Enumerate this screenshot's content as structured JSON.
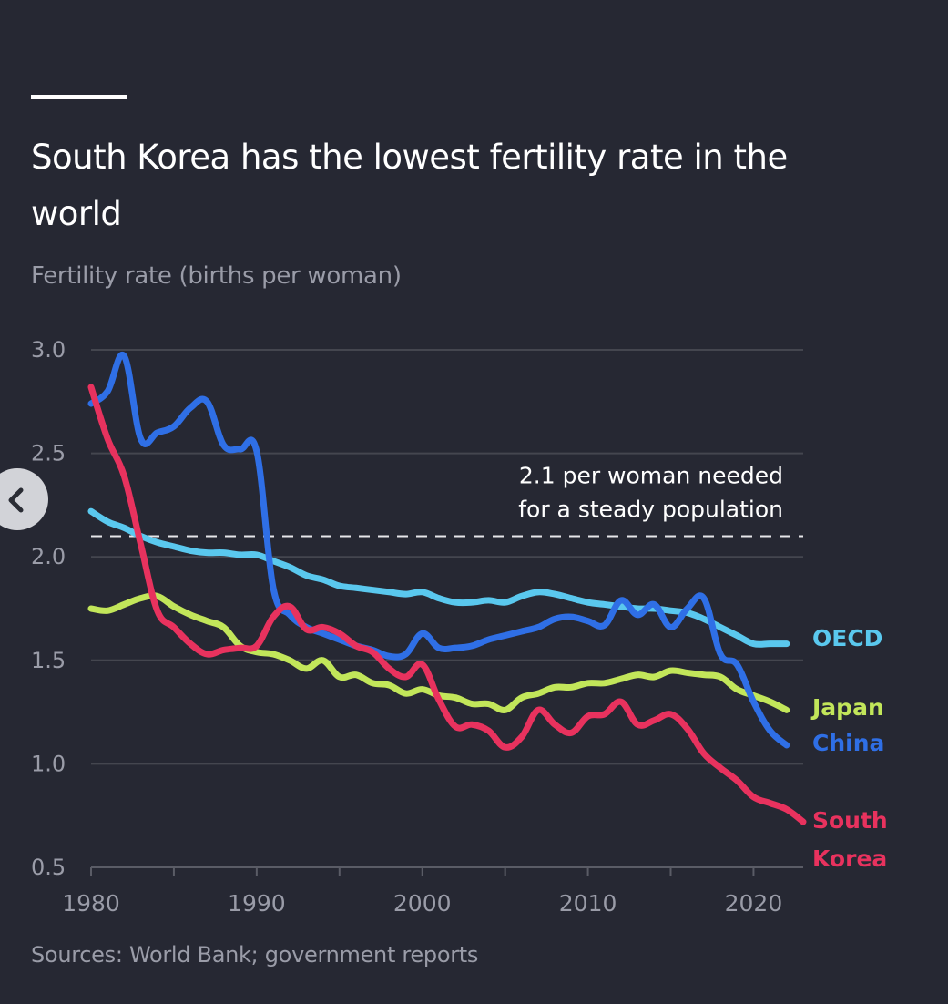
{
  "header": {
    "title": "South Korea has the lowest fertility rate in the world",
    "subtitle": "Fertility rate (births per woman)"
  },
  "footer": {
    "source": "Sources: World Bank; government reports"
  },
  "nav": {
    "back_icon": "chevron-left-icon"
  },
  "colors": {
    "background": "#262833",
    "grid": "#44464f",
    "axis_text": "#9a9ca8",
    "OECD": "#5ac8ee",
    "Japan": "#c2e65a",
    "China": "#2f6fe6",
    "South Korea": "#e8325e"
  },
  "chart_data": {
    "type": "line",
    "title": "South Korea has the lowest fertility rate in the world",
    "subtitle": "Fertility rate (births per woman)",
    "xlabel": "",
    "ylabel": "Fertility rate (births per woman)",
    "xlim": [
      1980,
      2023
    ],
    "ylim": [
      0.5,
      3.0
    ],
    "x_ticks": [
      1980,
      1985,
      1990,
      1995,
      2000,
      2005,
      2010,
      2015,
      2020
    ],
    "x_tick_labels": [
      "1980",
      "1990",
      "2000",
      "2010",
      "2020"
    ],
    "y_ticks": [
      3.0,
      2.5,
      2.0,
      1.5,
      1.0,
      0.5
    ],
    "y_tick_labels": [
      "3.0",
      "2.5",
      "2.0",
      "1.5",
      "1.0",
      "0.5"
    ],
    "grid": true,
    "legend": "direct labels at right end of lines",
    "reference_line": {
      "value": 2.1,
      "style": "dashed",
      "label_line1": "2.1 per woman needed",
      "label_line2": "for a steady population"
    },
    "series": [
      {
        "name": "OECD",
        "label": "OECD",
        "x": [
          1980,
          1981,
          1982,
          1983,
          1984,
          1985,
          1986,
          1987,
          1988,
          1989,
          1990,
          1991,
          1992,
          1993,
          1994,
          1995,
          1996,
          1997,
          1998,
          1999,
          2000,
          2001,
          2002,
          2003,
          2004,
          2005,
          2006,
          2007,
          2008,
          2009,
          2010,
          2011,
          2012,
          2013,
          2014,
          2015,
          2016,
          2017,
          2018,
          2019,
          2020,
          2021,
          2022
        ],
        "values": [
          2.22,
          2.17,
          2.14,
          2.1,
          2.07,
          2.05,
          2.03,
          2.02,
          2.02,
          2.01,
          2.01,
          1.98,
          1.95,
          1.91,
          1.89,
          1.86,
          1.85,
          1.84,
          1.83,
          1.82,
          1.83,
          1.8,
          1.78,
          1.78,
          1.79,
          1.78,
          1.81,
          1.83,
          1.82,
          1.8,
          1.78,
          1.77,
          1.76,
          1.75,
          1.75,
          1.74,
          1.73,
          1.7,
          1.66,
          1.62,
          1.58,
          1.58,
          1.58
        ]
      },
      {
        "name": "Japan",
        "label": "Japan",
        "x": [
          1980,
          1981,
          1982,
          1983,
          1984,
          1985,
          1986,
          1987,
          1988,
          1989,
          1990,
          1991,
          1992,
          1993,
          1994,
          1995,
          1996,
          1997,
          1998,
          1999,
          2000,
          2001,
          2002,
          2003,
          2004,
          2005,
          2006,
          2007,
          2008,
          2009,
          2010,
          2011,
          2012,
          2013,
          2014,
          2015,
          2016,
          2017,
          2018,
          2019,
          2020,
          2021,
          2022
        ],
        "values": [
          1.75,
          1.74,
          1.77,
          1.8,
          1.81,
          1.76,
          1.72,
          1.69,
          1.66,
          1.57,
          1.54,
          1.53,
          1.5,
          1.46,
          1.5,
          1.42,
          1.43,
          1.39,
          1.38,
          1.34,
          1.36,
          1.33,
          1.32,
          1.29,
          1.29,
          1.26,
          1.32,
          1.34,
          1.37,
          1.37,
          1.39,
          1.39,
          1.41,
          1.43,
          1.42,
          1.45,
          1.44,
          1.43,
          1.42,
          1.36,
          1.33,
          1.3,
          1.26
        ]
      },
      {
        "name": "China",
        "label": "China",
        "x": [
          1980,
          1981,
          1982,
          1983,
          1984,
          1985,
          1986,
          1987,
          1988,
          1989,
          1990,
          1991,
          1992,
          1993,
          1994,
          1995,
          1996,
          1997,
          1998,
          1999,
          2000,
          2001,
          2002,
          2003,
          2004,
          2005,
          2006,
          2007,
          2008,
          2009,
          2010,
          2011,
          2012,
          2013,
          2014,
          2015,
          2016,
          2017,
          2018,
          2019,
          2020,
          2021,
          2022
        ],
        "values": [
          2.74,
          2.8,
          2.97,
          2.57,
          2.6,
          2.63,
          2.72,
          2.75,
          2.54,
          2.52,
          2.51,
          1.85,
          1.72,
          1.66,
          1.63,
          1.6,
          1.57,
          1.55,
          1.52,
          1.53,
          1.63,
          1.56,
          1.56,
          1.57,
          1.6,
          1.62,
          1.64,
          1.66,
          1.7,
          1.71,
          1.69,
          1.67,
          1.79,
          1.72,
          1.77,
          1.66,
          1.75,
          1.8,
          1.53,
          1.48,
          1.3,
          1.16,
          1.09
        ]
      },
      {
        "name": "South Korea",
        "label_line1": "South",
        "label_line2": "Korea",
        "x": [
          1980,
          1981,
          1982,
          1983,
          1984,
          1985,
          1986,
          1987,
          1988,
          1989,
          1990,
          1991,
          1992,
          1993,
          1994,
          1995,
          1996,
          1997,
          1998,
          1999,
          2000,
          2001,
          2002,
          2003,
          2004,
          2005,
          2006,
          2007,
          2008,
          2009,
          2010,
          2011,
          2012,
          2013,
          2014,
          2015,
          2016,
          2017,
          2018,
          2019,
          2020,
          2021,
          2022,
          2023
        ],
        "values": [
          2.82,
          2.57,
          2.39,
          2.06,
          1.74,
          1.66,
          1.58,
          1.53,
          1.55,
          1.56,
          1.57,
          1.71,
          1.76,
          1.65,
          1.66,
          1.63,
          1.57,
          1.54,
          1.46,
          1.42,
          1.48,
          1.31,
          1.18,
          1.19,
          1.16,
          1.08,
          1.13,
          1.26,
          1.19,
          1.15,
          1.23,
          1.24,
          1.3,
          1.19,
          1.21,
          1.24,
          1.17,
          1.05,
          0.98,
          0.92,
          0.84,
          0.81,
          0.78,
          0.72
        ]
      }
    ]
  }
}
